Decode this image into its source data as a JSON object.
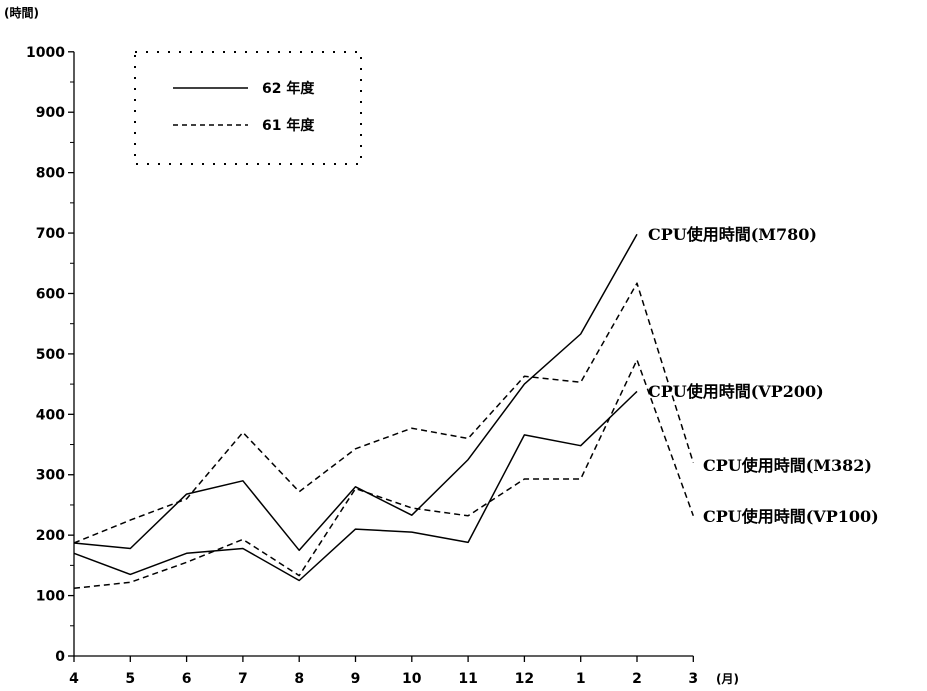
{
  "chart_data": {
    "type": "line",
    "x_unit": "(月)",
    "y_unit": "(時間)",
    "categories": [
      "4",
      "5",
      "6",
      "7",
      "8",
      "9",
      "10",
      "11",
      "12",
      "1",
      "2",
      "3"
    ],
    "ylim": [
      0,
      1000
    ],
    "y_ticks": [
      0,
      100,
      200,
      300,
      400,
      500,
      600,
      700,
      800,
      900,
      1000
    ],
    "legend": {
      "placement": "top-left",
      "items": [
        {
          "label": "62 年度",
          "style": "solid"
        },
        {
          "label": "61 年度",
          "style": "dashed"
        }
      ]
    },
    "series": [
      {
        "name": "CPU使用時間(M780)",
        "style": "solid",
        "values": [
          187,
          178,
          268,
          290,
          175,
          280,
          233,
          325,
          450,
          533,
          698,
          null
        ]
      },
      {
        "name": "CPU使用時間(VP200)",
        "style": "solid",
        "values": [
          170,
          135,
          170,
          178,
          125,
          210,
          205,
          188,
          366,
          348,
          438,
          null
        ]
      },
      {
        "name": "CPU使用時間(M382)",
        "style": "dashed",
        "values": [
          187,
          225,
          260,
          370,
          272,
          343,
          377,
          360,
          463,
          453,
          617,
          320
        ]
      },
      {
        "name": "CPU使用時間(VP100)",
        "style": "dashed",
        "values": [
          112,
          122,
          155,
          193,
          133,
          277,
          245,
          232,
          293,
          293,
          490,
          232
        ]
      }
    ],
    "series_labels": [
      {
        "text": "CPU使用時間(M780)"
      },
      {
        "text": "CPU使用時間(VP200)"
      },
      {
        "text": "CPU使用時間(M382)"
      },
      {
        "text": "CPU使用時間(VP100)"
      }
    ]
  }
}
